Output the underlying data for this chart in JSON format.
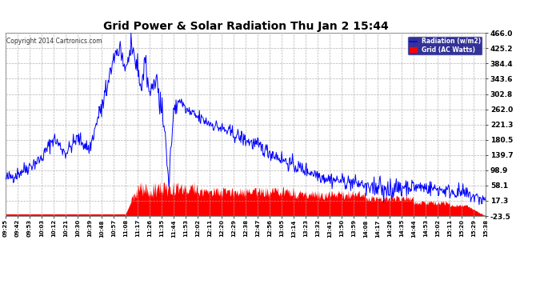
{
  "title": "Grid Power & Solar Radiation Thu Jan 2 15:44",
  "copyright": "Copyright 2014 Cartronics.com",
  "bg_color": "#ffffff",
  "plot_bg_color": "#ffffff",
  "grid_color": "#aaaaaa",
  "blue_color": "#0000ff",
  "red_color": "#ff0000",
  "yticks": [
    466.0,
    425.2,
    384.4,
    343.6,
    302.8,
    262.0,
    221.3,
    180.5,
    139.7,
    98.9,
    58.1,
    17.3,
    -23.5
  ],
  "ymin": -23.5,
  "ymax": 466.0,
  "legend_labels": [
    "Radiation (w/m2)",
    "Grid (AC Watts)"
  ],
  "legend_bg_color": "#000080",
  "xtick_labels": [
    "09:25",
    "09:42",
    "09:53",
    "10:03",
    "10:12",
    "10:21",
    "10:30",
    "10:39",
    "10:48",
    "10:57",
    "11:08",
    "11:17",
    "11:26",
    "11:35",
    "11:44",
    "11:53",
    "12:02",
    "12:11",
    "12:20",
    "12:29",
    "12:38",
    "12:47",
    "12:56",
    "13:05",
    "13:14",
    "13:23",
    "13:32",
    "13:41",
    "13:50",
    "13:59",
    "14:08",
    "14:17",
    "14:26",
    "14:35",
    "14:44",
    "14:53",
    "15:02",
    "15:11",
    "15:20",
    "15:29",
    "15:38"
  ],
  "n_ticks": 41,
  "pts_per_tick": 20,
  "blue_seed": 42,
  "red_seed": 99
}
